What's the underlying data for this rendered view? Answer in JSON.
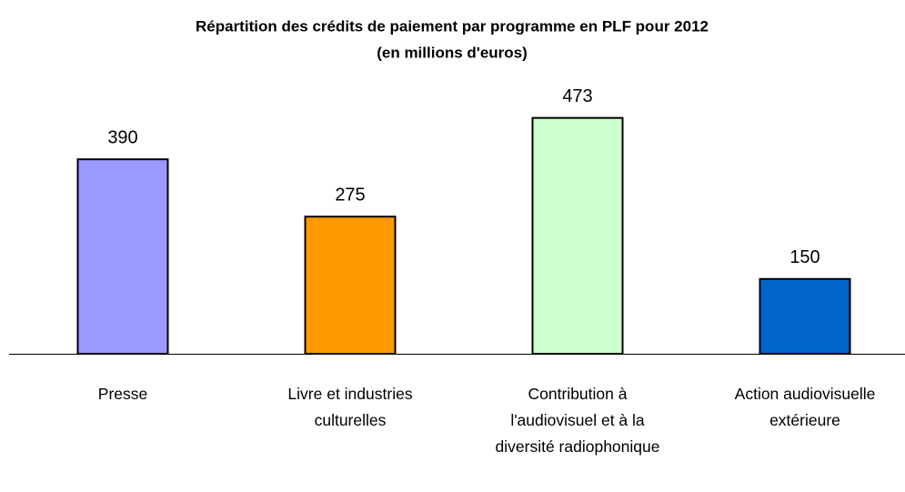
{
  "chart_data": {
    "type": "bar",
    "title": "Répartition des crédits de paiement par programme en PLF pour 2012",
    "subtitle": "(en millions d'euros)",
    "categories": [
      "Presse",
      "Livre et industries culturelles",
      "Contribution à l'audiovisuel et à la diversité radiophonique",
      "Action audiovisuelle extérieure"
    ],
    "values": [
      390,
      275,
      473,
      150
    ],
    "colors": [
      "#9999ff",
      "#ff9900",
      "#ccffcc",
      "#0066cc"
    ],
    "ylim": [
      0,
      600
    ]
  }
}
